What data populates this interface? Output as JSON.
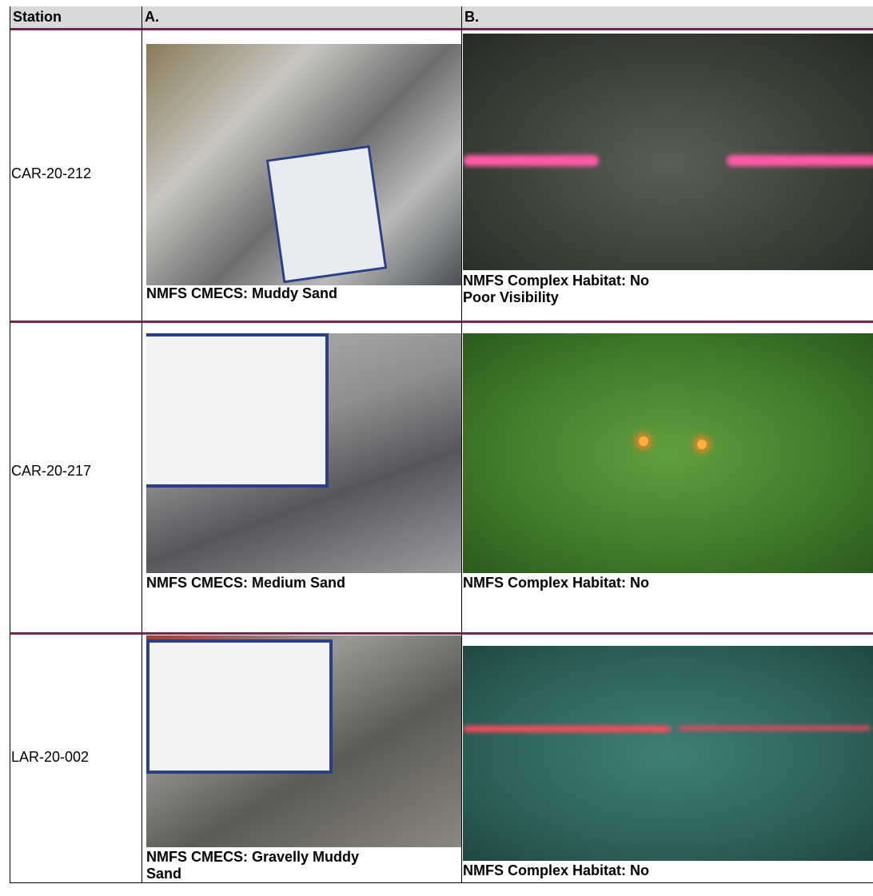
{
  "table": {
    "header": [
      "Station",
      "A.",
      "B."
    ],
    "rows": [
      {
        "station": "CAR-20-212",
        "a_caption": "NMFS CMECS:  Muddy Sand",
        "b_caption": [
          "NMFS Complex Habitat:  No",
          "Poor Visibility"
        ]
      },
      {
        "station": "CAR-20-217",
        "a_caption": "NMFS CMECS:  Medium Sand",
        "b_caption": [
          "NMFS Complex Habitat:  No"
        ]
      },
      {
        "station": "LAR-20-002",
        "a_caption": "NMFS CMECS:  Gravelly Muddy Sand",
        "b_caption": [
          "NMFS Complex Habitat:  No"
        ]
      }
    ]
  }
}
